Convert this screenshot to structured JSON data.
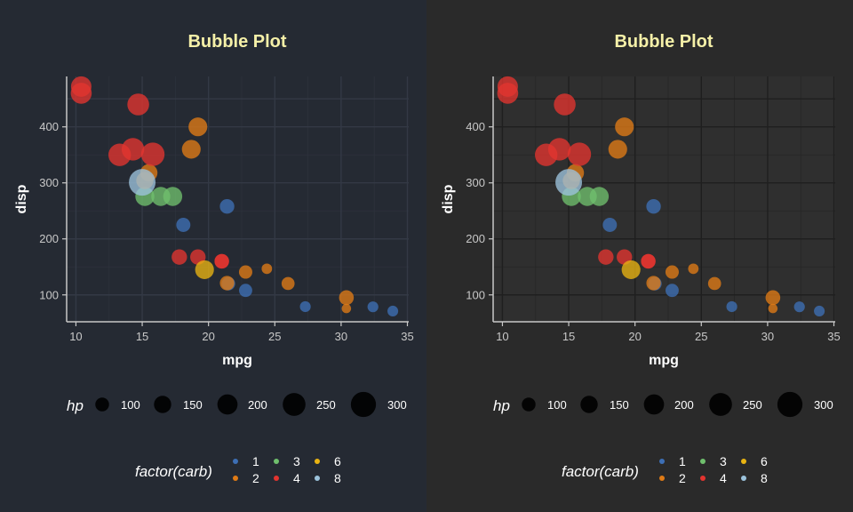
{
  "chart_data": [
    {
      "type": "scatter",
      "variant": "bubble",
      "title": "Bubble Plot",
      "xlabel": "mpg",
      "ylabel": "disp",
      "xlim": [
        9.3,
        35.1
      ],
      "ylim": [
        52,
        490
      ],
      "xticks": [
        10,
        15,
        20,
        25,
        30,
        35
      ],
      "yticks": [
        100,
        200,
        300,
        400
      ],
      "panel_background": "none",
      "background": "#252a33",
      "grid": true,
      "size_legend": {
        "title": "hp",
        "labels": [
          "100",
          "150",
          "200",
          "250",
          "300"
        ],
        "values": [
          100,
          150,
          200,
          250,
          300
        ]
      },
      "color_legend": {
        "title": "factor(carb)",
        "labels": [
          "1",
          "2",
          "3",
          "4",
          "6",
          "8"
        ]
      },
      "colors": {
        "1": "#3d6fb5",
        "2": "#e07b16",
        "3": "#6fbf6d",
        "4": "#e3342f",
        "6": "#e9b412",
        "8": "#9cc3dc"
      },
      "points": [
        {
          "mpg": 21.0,
          "disp": 160,
          "hp": 110,
          "carb": "4"
        },
        {
          "mpg": 21.0,
          "disp": 160,
          "hp": 110,
          "carb": "4"
        },
        {
          "mpg": 22.8,
          "disp": 108,
          "hp": 93,
          "carb": "1"
        },
        {
          "mpg": 21.4,
          "disp": 258,
          "hp": 110,
          "carb": "1"
        },
        {
          "mpg": 18.7,
          "disp": 360,
          "hp": 175,
          "carb": "2"
        },
        {
          "mpg": 18.1,
          "disp": 225,
          "hp": 105,
          "carb": "1"
        },
        {
          "mpg": 14.3,
          "disp": 360,
          "hp": 245,
          "carb": "4"
        },
        {
          "mpg": 24.4,
          "disp": 146.7,
          "hp": 62,
          "carb": "2"
        },
        {
          "mpg": 22.8,
          "disp": 140.8,
          "hp": 95,
          "carb": "2"
        },
        {
          "mpg": 19.2,
          "disp": 167.6,
          "hp": 123,
          "carb": "4"
        },
        {
          "mpg": 17.8,
          "disp": 167.6,
          "hp": 123,
          "carb": "4"
        },
        {
          "mpg": 16.4,
          "disp": 275.8,
          "hp": 180,
          "carb": "3"
        },
        {
          "mpg": 17.3,
          "disp": 275.8,
          "hp": 180,
          "carb": "3"
        },
        {
          "mpg": 15.2,
          "disp": 275.8,
          "hp": 180,
          "carb": "3"
        },
        {
          "mpg": 10.4,
          "disp": 472,
          "hp": 205,
          "carb": "4"
        },
        {
          "mpg": 10.4,
          "disp": 460,
          "hp": 215,
          "carb": "4"
        },
        {
          "mpg": 14.7,
          "disp": 440,
          "hp": 230,
          "carb": "4"
        },
        {
          "mpg": 32.4,
          "disp": 78.7,
          "hp": 66,
          "carb": "1"
        },
        {
          "mpg": 30.4,
          "disp": 75.7,
          "hp": 52,
          "carb": "2"
        },
        {
          "mpg": 33.9,
          "disp": 71.1,
          "hp": 65,
          "carb": "1"
        },
        {
          "mpg": 21.5,
          "disp": 120.1,
          "hp": 97,
          "carb": "1"
        },
        {
          "mpg": 15.5,
          "disp": 318,
          "hp": 150,
          "carb": "2"
        },
        {
          "mpg": 15.2,
          "disp": 304,
          "hp": 150,
          "carb": "2"
        },
        {
          "mpg": 13.3,
          "disp": 350,
          "hp": 245,
          "carb": "4"
        },
        {
          "mpg": 19.2,
          "disp": 400,
          "hp": 175,
          "carb": "2"
        },
        {
          "mpg": 27.3,
          "disp": 79,
          "hp": 66,
          "carb": "1"
        },
        {
          "mpg": 26.0,
          "disp": 120.3,
          "hp": 91,
          "carb": "2"
        },
        {
          "mpg": 30.4,
          "disp": 95.1,
          "hp": 113,
          "carb": "2"
        },
        {
          "mpg": 15.8,
          "disp": 351,
          "hp": 264,
          "carb": "4"
        },
        {
          "mpg": 19.7,
          "disp": 145,
          "hp": 175,
          "carb": "6"
        },
        {
          "mpg": 15.0,
          "disp": 301,
          "hp": 335,
          "carb": "8"
        },
        {
          "mpg": 21.4,
          "disp": 121,
          "hp": 109,
          "carb": "2"
        }
      ]
    },
    {
      "type": "scatter",
      "variant": "bubble",
      "title": "Bubble Plot",
      "xlabel": "mpg",
      "ylabel": "disp",
      "xlim": [
        9.3,
        35.1
      ],
      "ylim": [
        52,
        490
      ],
      "xticks": [
        10,
        15,
        20,
        25,
        30,
        35
      ],
      "yticks": [
        100,
        200,
        300,
        400
      ],
      "panel_background": "#2f2f2f",
      "background": "#2a2a2a",
      "grid": true,
      "size_legend": {
        "title": "hp",
        "labels": [
          "100",
          "150",
          "200",
          "250",
          "300"
        ],
        "values": [
          100,
          150,
          200,
          250,
          300
        ]
      },
      "color_legend": {
        "title": "factor(carb)",
        "labels": [
          "1",
          "2",
          "3",
          "4",
          "6",
          "8"
        ]
      },
      "colors": {
        "1": "#3d6fb5",
        "2": "#e07b16",
        "3": "#6fbf6d",
        "4": "#e3342f",
        "6": "#e9b412",
        "8": "#9cc3dc"
      },
      "points": "same as first panel"
    }
  ]
}
